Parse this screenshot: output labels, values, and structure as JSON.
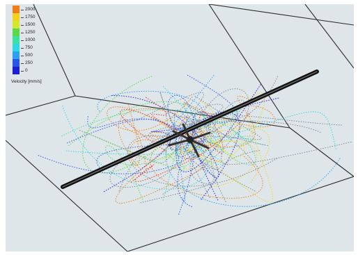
{
  "legend": {
    "ticks": [
      "2000",
      "1750",
      "1500",
      "1250",
      "1000",
      "750",
      "500",
      "250",
      "0"
    ],
    "colors": [
      "#f07c1a",
      "#f2d21e",
      "#d6e82c",
      "#5bd84a",
      "#3ee0a0",
      "#2fd8e0",
      "#2ea0f0",
      "#2a56e8",
      "#1d1fd6"
    ],
    "title": "Velocity [mm/s]"
  },
  "scene": {
    "background": "#dfe6e9",
    "edge_color": "#2a2a2a",
    "shaft_color": "#111111",
    "impeller_icon": "impeller-icon",
    "streamline_palette": [
      "#1d1fd6",
      "#2a56e8",
      "#2ea0f0",
      "#2fd8e0",
      "#3ee0a0",
      "#5bd84a",
      "#d6e82c",
      "#f2d21e",
      "#f07c1a",
      "#e0322a",
      "#7a8a94"
    ]
  }
}
